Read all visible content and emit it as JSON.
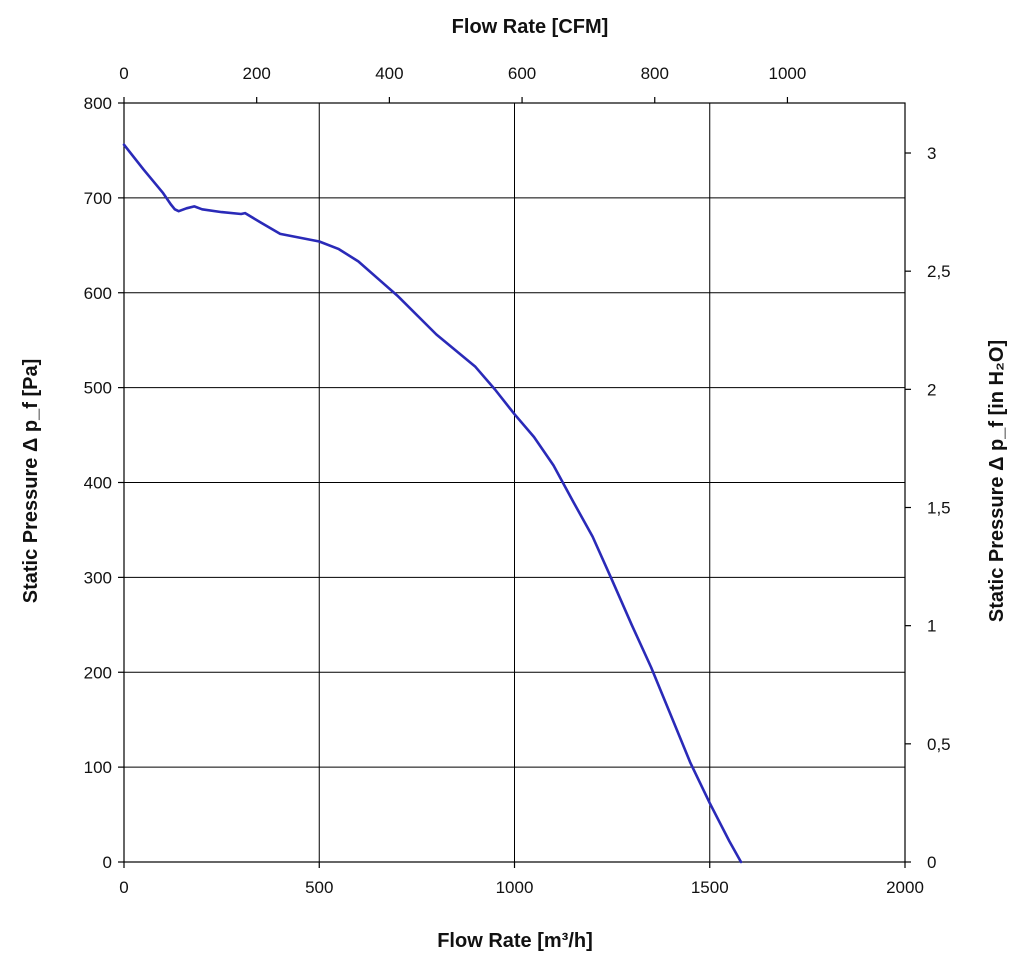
{
  "chart_data": {
    "type": "line",
    "title": "",
    "xlabel": "Flow Rate [m³/h]",
    "x2label": "Flow Rate [CFM]",
    "ylabel": "Static Pressure Δ p_f [Pa]",
    "y2label": "Static Pressure Δ p_f [in H₂O]",
    "xlim": [
      0,
      2000
    ],
    "ylim": [
      0,
      800
    ],
    "x2lim": [
      0,
      1177.2
    ],
    "y2lim": [
      0,
      3.2116
    ],
    "x_ticks": [
      0,
      500,
      1000,
      1500,
      2000
    ],
    "y_ticks": [
      0,
      100,
      200,
      300,
      400,
      500,
      600,
      700,
      800
    ],
    "x2_ticks": [
      0,
      200,
      400,
      600,
      800,
      1000
    ],
    "y2_ticks": [
      0,
      0.5,
      1,
      1.5,
      2,
      2.5,
      3
    ],
    "x_tick_labels": [
      "0",
      "500",
      "1000",
      "1500",
      "2000"
    ],
    "y_tick_labels": [
      "0",
      "100",
      "200",
      "300",
      "400",
      "500",
      "600",
      "700",
      "800"
    ],
    "x2_tick_labels": [
      "0",
      "200",
      "400",
      "600",
      "800",
      "1000"
    ],
    "y2_tick_labels": [
      "0",
      "0,5",
      "1",
      "1,5",
      "2",
      "2,5",
      "3"
    ],
    "grid": true,
    "series": [
      {
        "color": "#2a2ab8",
        "x": [
          0,
          50,
          100,
          120,
          130,
          140,
          160,
          180,
          200,
          250,
          300,
          310,
          350,
          400,
          500,
          550,
          600,
          700,
          800,
          900,
          950,
          1000,
          1050,
          1100,
          1150,
          1200,
          1250,
          1300,
          1350,
          1400,
          1450,
          1500,
          1550,
          1580
        ],
        "y": [
          756,
          730,
          705,
          693,
          688,
          686,
          689,
          691,
          688,
          685,
          683,
          684,
          674,
          662,
          654,
          646,
          633,
          597,
          556,
          522,
          498,
          472,
          448,
          418,
          380,
          343,
          297,
          250,
          205,
          155,
          105,
          62,
          22,
          0
        ]
      }
    ]
  }
}
